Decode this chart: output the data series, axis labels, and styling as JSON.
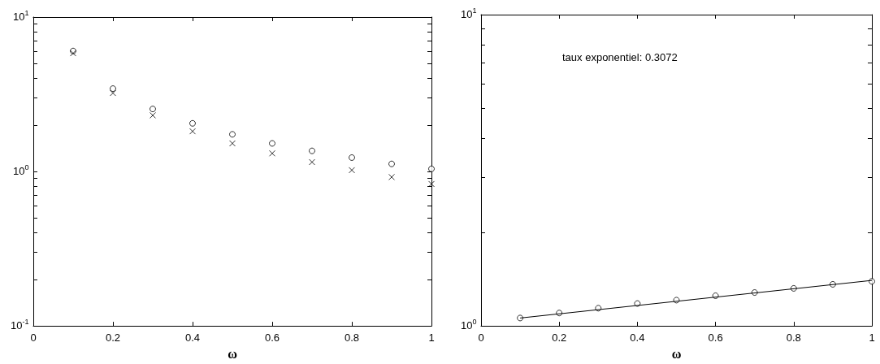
{
  "chart_data": [
    {
      "type": "scatter",
      "xlabel": "ω",
      "x": [
        0.1,
        0.2,
        0.3,
        0.4,
        0.5,
        0.6,
        0.7,
        0.8,
        0.9,
        1.0
      ],
      "series": [
        {
          "color": "#000000",
          "marker": "circle",
          "values": [
            6.03,
            3.44,
            2.54,
            2.05,
            1.74,
            1.52,
            1.36,
            1.23,
            1.12,
            1.04
          ]
        },
        {
          "color": "#000000",
          "marker": "cross",
          "values": [
            5.83,
            3.22,
            2.31,
            1.82,
            1.52,
            1.31,
            1.15,
            1.02,
            0.92,
            0.83
          ]
        }
      ],
      "log": "y",
      "xlim": [
        0,
        1
      ],
      "xticks": [
        0,
        0.2,
        0.4,
        0.6,
        0.8,
        1
      ],
      "ylim": [
        0.1,
        10
      ],
      "yticks": [
        {
          "value": 0.1,
          "label": "10$^{-1}$"
        },
        {
          "value": 0.2,
          "label": null
        },
        {
          "value": 0.3,
          "label": null
        },
        {
          "value": 0.4,
          "label": null
        },
        {
          "value": 0.5,
          "label": null
        },
        {
          "value": 0.6,
          "label": null
        },
        {
          "value": 0.7,
          "label": null
        },
        {
          "value": 0.8,
          "label": null
        },
        {
          "value": 0.9,
          "label": null
        },
        {
          "value": 1,
          "label": "10$^{0}$"
        },
        {
          "value": 2,
          "label": null
        },
        {
          "value": 3,
          "label": null
        },
        {
          "value": 4,
          "label": null
        },
        {
          "value": 5,
          "label": null
        },
        {
          "value": 6,
          "label": null
        },
        {
          "value": 7,
          "label": null
        },
        {
          "value": 8,
          "label": null
        },
        {
          "value": 9,
          "label": null
        },
        {
          "value": 10,
          "label": "10$^{1}$"
        }
      ],
      "grid": false
    },
    {
      "type": "scatter",
      "xlabel": "ω",
      "annotations": [
        "taux exponentiel: 0.3072"
      ],
      "series": [
        {
          "color": "#000000",
          "marker": "circle",
          "x": [
            0.1,
            0.2,
            0.3,
            0.4,
            0.5,
            0.6,
            0.7,
            0.8,
            0.9,
            1.0
          ],
          "values": [
            1.06,
            1.1,
            1.14,
            1.18,
            1.21,
            1.25,
            1.28,
            1.32,
            1.36,
            1.39
          ]
        },
        {
          "type": "line",
          "color": "#000000",
          "marker": "none",
          "line_style": "solid",
          "x": [
            0.1,
            1.0
          ],
          "values": [
            1.06,
            1.4
          ]
        }
      ],
      "log": "y",
      "xlim": [
        0,
        1
      ],
      "xticks": [
        0,
        0.2,
        0.4,
        0.6,
        0.8,
        1
      ],
      "ylim": [
        1,
        10
      ],
      "yticks": [
        {
          "value": 1,
          "label": "10$^{0}$"
        },
        {
          "value": 2,
          "label": null
        },
        {
          "value": 3,
          "label": null
        },
        {
          "value": 4,
          "label": null
        },
        {
          "value": 5,
          "label": null
        },
        {
          "value": 6,
          "label": null
        },
        {
          "value": 7,
          "label": null
        },
        {
          "value": 8,
          "label": null
        },
        {
          "value": 9,
          "label": null
        },
        {
          "value": 10,
          "label": "10$^{1}$"
        }
      ],
      "grid": false
    }
  ]
}
